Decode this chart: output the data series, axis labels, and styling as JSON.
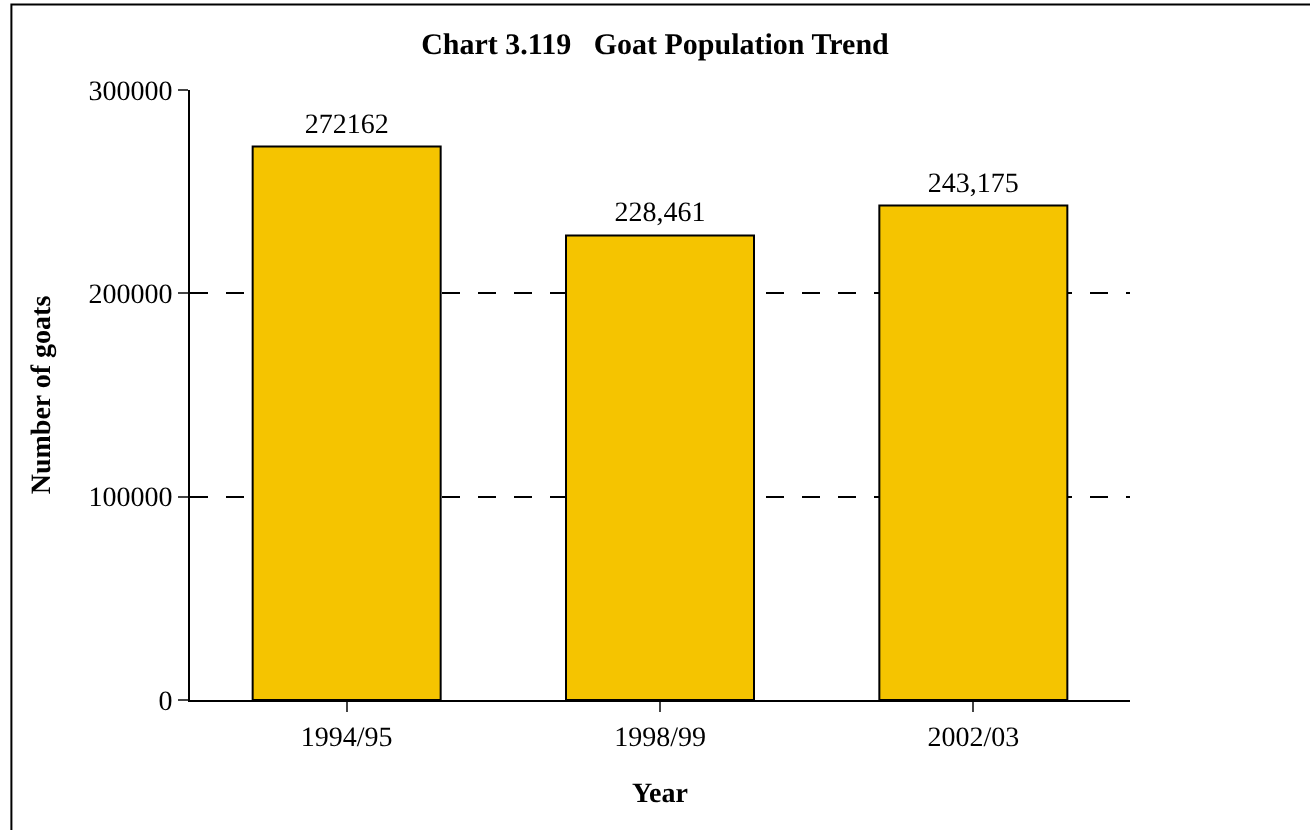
{
  "chart_data": {
    "type": "bar",
    "title": "Chart 3.119   Goat Population Trend",
    "xlabel": "Year",
    "ylabel": "Number of goats",
    "categories": [
      "1994/95",
      "1998/99",
      "2002/03"
    ],
    "values": [
      272162,
      228461,
      243175
    ],
    "value_labels": [
      "272162",
      "228,461",
      "243,175"
    ],
    "color": "#f5c400",
    "ylim": [
      0,
      300000
    ],
    "yticks": [
      0,
      100000,
      200000,
      300000
    ],
    "grid": "y",
    "legend": false
  }
}
